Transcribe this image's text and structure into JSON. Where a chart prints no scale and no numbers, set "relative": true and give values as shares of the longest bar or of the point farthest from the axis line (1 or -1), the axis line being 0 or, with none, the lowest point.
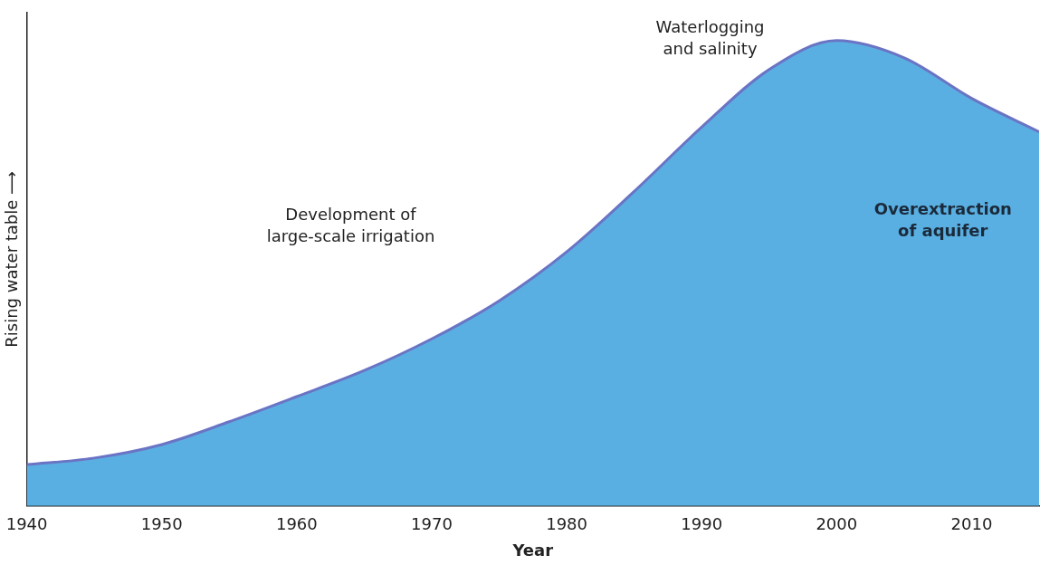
{
  "chart_data": {
    "type": "area",
    "relative": true,
    "xlabel": "Year",
    "ylabel": "Rising water table ⟶",
    "x": [
      1940,
      1945,
      1950,
      1955,
      1960,
      1965,
      1970,
      1975,
      1980,
      1985,
      1990,
      1995,
      2000,
      2005,
      2010,
      2015
    ],
    "series": [
      {
        "color": "#5aafe2",
        "values": [
          0.089,
          0.103,
          0.132,
          0.181,
          0.235,
          0.291,
          0.359,
          0.441,
          0.546,
          0.676,
          0.814,
          0.938,
          1,
          0.963,
          0.876,
          0.804
        ]
      }
    ],
    "xlim": [
      1940,
      2015
    ],
    "xticks": [
      1940,
      1950,
      1960,
      1970,
      1980,
      1990,
      2000,
      2010
    ],
    "annotations": [
      "Development of\nlarge-scale irrigation",
      "Waterlogging\nand salinity",
      "Overextraction\nof aquifer"
    ],
    "grid": false,
    "legend": false
  }
}
